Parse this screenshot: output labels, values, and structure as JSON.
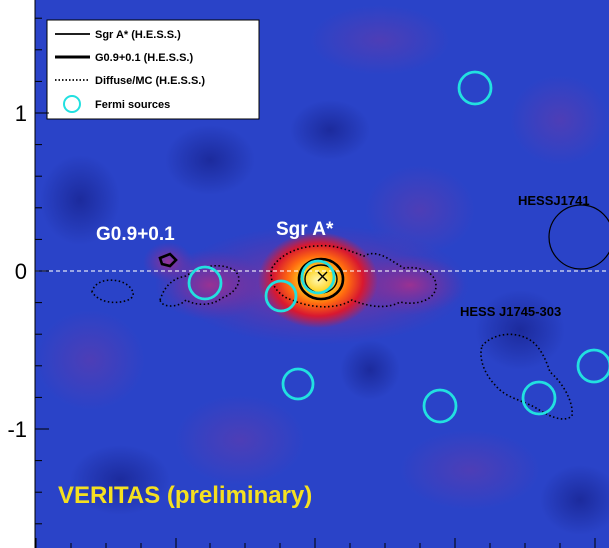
{
  "chart_data": {
    "type": "heatmap",
    "title": "",
    "xlabel": "",
    "ylabel": "",
    "ylim": [
      -1.7,
      1.7
    ],
    "y_ticks": [
      {
        "value": 1,
        "label": "1"
      },
      {
        "value": 0,
        "label": "0"
      },
      {
        "value": -1,
        "label": "-1"
      }
    ],
    "reference_line_y": 0,
    "watermark": "VERITAS (preliminary)",
    "legend": {
      "placement": "top-left",
      "entries": [
        {
          "label": "Sgr A* (H.E.S.S.)",
          "style": "solid-thin"
        },
        {
          "label": "G0.9+0.1 (H.E.S.S.)",
          "style": "solid-thick"
        },
        {
          "label": "Diffuse/MC (H.E.S.S.)",
          "style": "dotted"
        },
        {
          "label": "Fermi sources",
          "style": "cyan-circle"
        }
      ]
    },
    "source_labels": [
      {
        "text": "G0.9+0.1",
        "color": "#ffffff"
      },
      {
        "text": "Sgr A*",
        "color": "#ffffff"
      },
      {
        "text": "HESSJ1741",
        "color": "#000000"
      },
      {
        "text": "HESS J1745-303",
        "color": "#000000"
      }
    ],
    "fermi_sources_lat": [
      1.15,
      -0.1,
      -0.15,
      -0.03,
      -0.72,
      -0.85,
      -0.78,
      -0.6
    ],
    "colors": {
      "background": "#2a43c8",
      "peak": "#fff8b0",
      "fermi": "#22e0e0",
      "watermark": "#f5e020"
    }
  }
}
